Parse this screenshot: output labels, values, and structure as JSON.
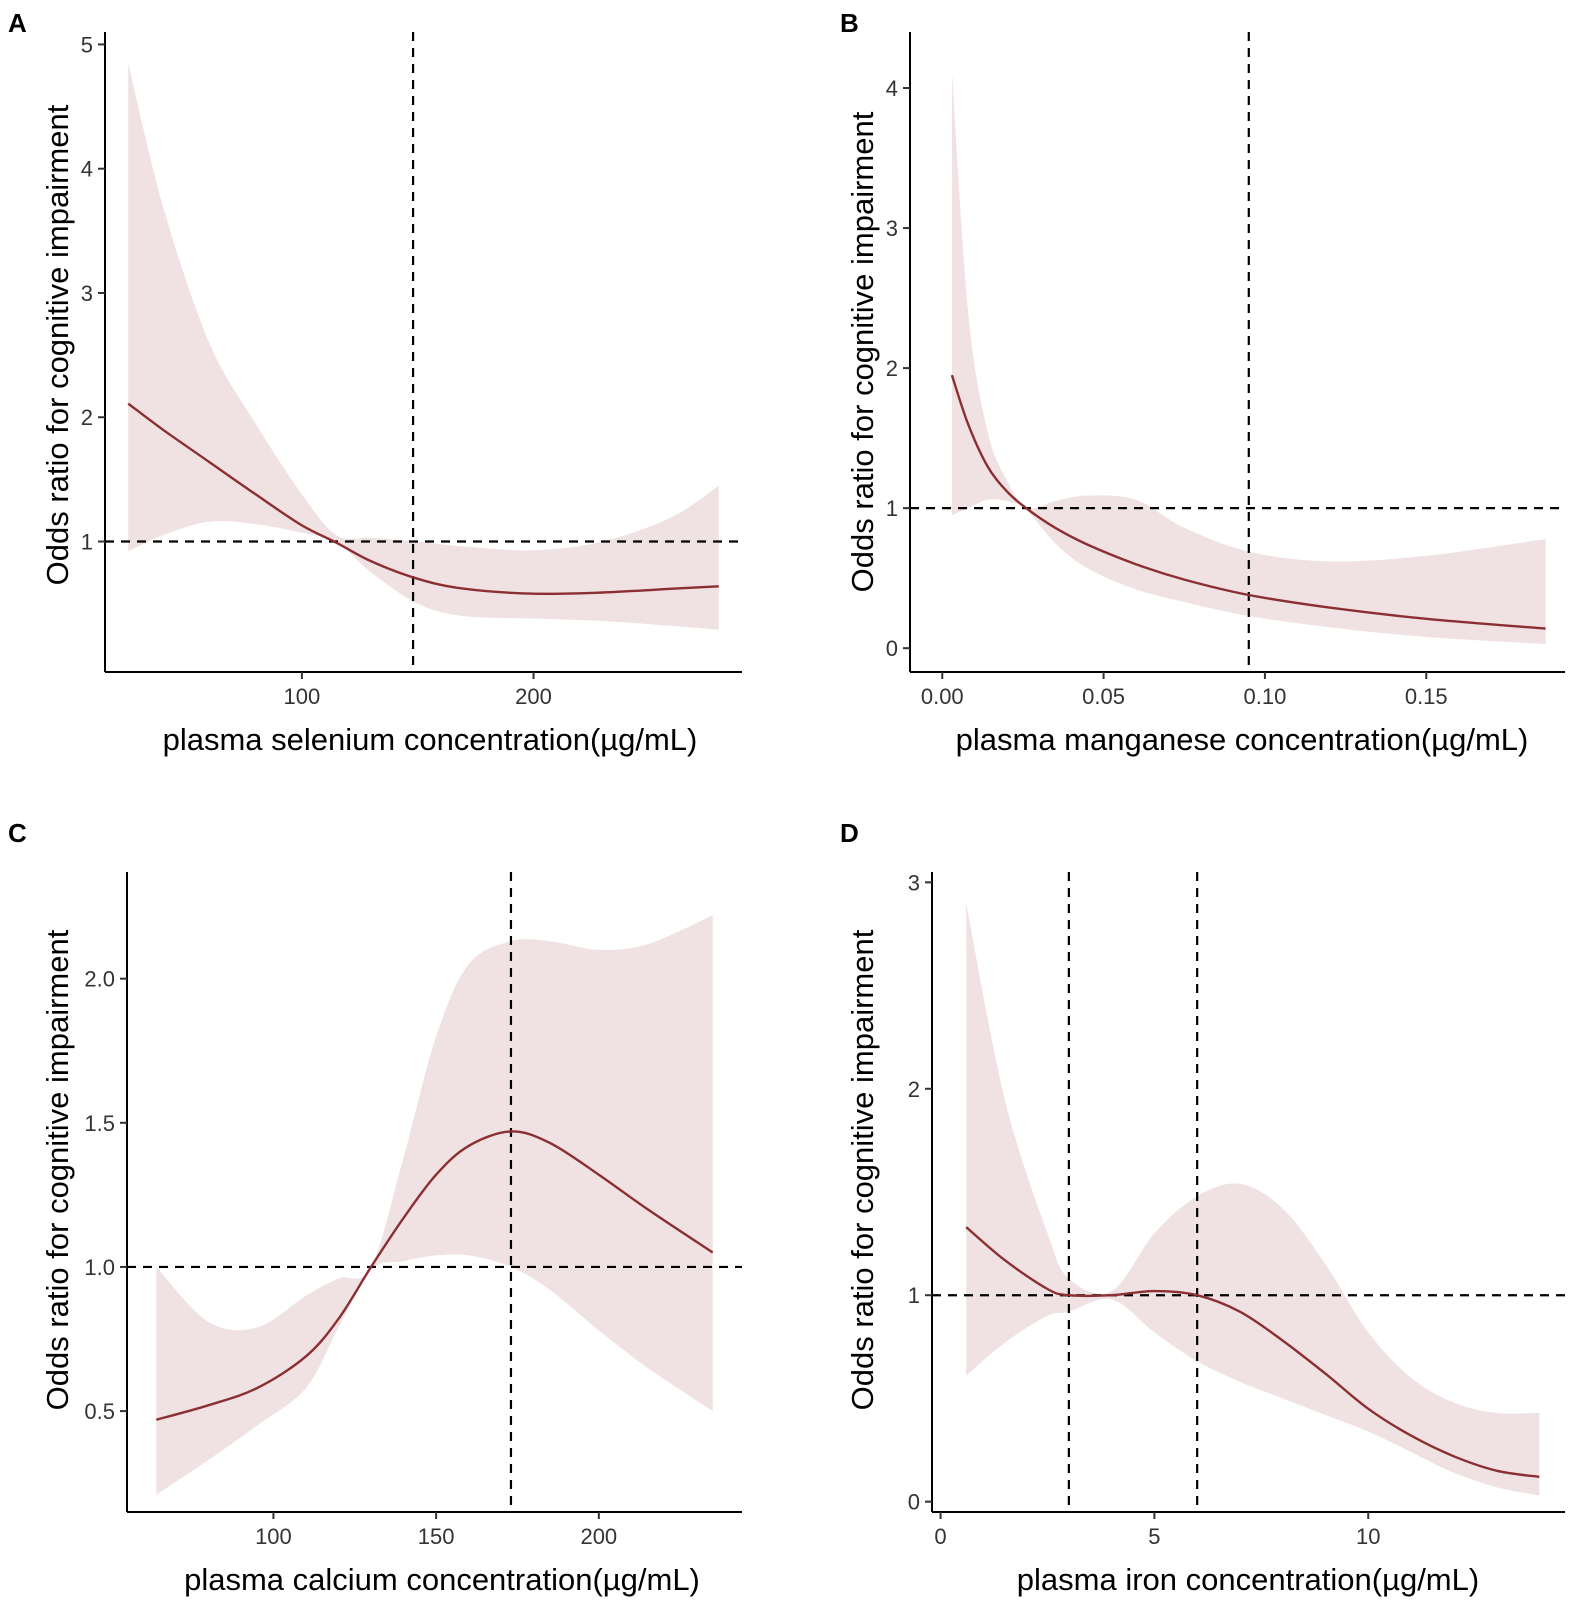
{
  "chart_data": [
    {
      "panel": "A",
      "type": "line",
      "xlabel": "plasma selenium concentration(µg/mL)",
      "ylabel": "Odds ratio for cognitive impairment",
      "xlim": [
        15,
        290
      ],
      "ylim": [
        -0.05,
        5.1
      ],
      "xticks": [
        100,
        200
      ],
      "xtick_labels": [
        "100",
        "200"
      ],
      "yticks": [
        1,
        2,
        3,
        4,
        5
      ],
      "ytick_labels": [
        "1",
        "2",
        "3",
        "4",
        "5"
      ],
      "reference_lines": {
        "h": [
          1
        ],
        "v": [
          148
        ]
      },
      "colors": {
        "line": "#8b2f33",
        "band": "#f0e2e3",
        "ref": "#000000"
      },
      "series": [
        {
          "name": "odds ratio",
          "x": [
            25,
            40,
            60,
            80,
            100,
            115,
            130,
            150,
            170,
            200,
            230,
            260,
            280
          ],
          "y": [
            2.11,
            1.9,
            1.64,
            1.38,
            1.13,
            0.99,
            0.84,
            0.7,
            0.62,
            0.58,
            0.59,
            0.62,
            0.64
          ],
          "lower": [
            0.92,
            1.05,
            1.16,
            1.14,
            1.07,
            0.99,
            0.75,
            0.5,
            0.4,
            0.38,
            0.36,
            0.32,
            0.29
          ],
          "upper": [
            4.85,
            3.7,
            2.6,
            1.95,
            1.38,
            1.05,
            1.03,
            1.0,
            0.96,
            0.93,
            1.0,
            1.2,
            1.45
          ]
        }
      ]
    },
    {
      "panel": "B",
      "type": "line",
      "xlabel": "plasma manganese concentration(µg/mL)",
      "ylabel": "Odds ratio for cognitive impairment",
      "xlim": [
        -0.01,
        0.193
      ],
      "ylim": [
        -0.17,
        4.4
      ],
      "xticks": [
        0.0,
        0.05,
        0.1,
        0.15
      ],
      "xtick_labels": [
        "0.00",
        "0.05",
        "0.10",
        "0.15"
      ],
      "yticks": [
        0,
        1,
        2,
        3,
        4
      ],
      "ytick_labels": [
        "0",
        "1",
        "2",
        "3",
        "4"
      ],
      "reference_lines": {
        "h": [
          1
        ],
        "v": [
          0.095
        ]
      },
      "colors": {
        "line": "#8b2f33",
        "band": "#f0e2e3",
        "ref": "#000000"
      },
      "series": [
        {
          "name": "odds ratio",
          "x": [
            0.003,
            0.008,
            0.014,
            0.02,
            0.026,
            0.035,
            0.045,
            0.06,
            0.075,
            0.095,
            0.12,
            0.15,
            0.187
          ],
          "y": [
            1.95,
            1.6,
            1.3,
            1.12,
            1.0,
            0.86,
            0.74,
            0.6,
            0.49,
            0.38,
            0.29,
            0.21,
            0.14
          ],
          "lower": [
            0.95,
            1.0,
            1.06,
            1.05,
            0.99,
            0.75,
            0.57,
            0.42,
            0.33,
            0.23,
            0.15,
            0.08,
            0.03
          ],
          "upper": [
            4.12,
            2.4,
            1.55,
            1.2,
            1.0,
            1.05,
            1.09,
            1.06,
            0.86,
            0.69,
            0.62,
            0.66,
            0.78
          ]
        }
      ]
    },
    {
      "panel": "C",
      "type": "line",
      "xlabel": "plasma calcium concentration(µg/mL)",
      "ylabel": "Odds ratio for cognitive impairment",
      "xlim": [
        55,
        244
      ],
      "ylim": [
        0.15,
        2.37
      ],
      "xticks": [
        100,
        150,
        200
      ],
      "xtick_labels": [
        "100",
        "150",
        "200"
      ],
      "yticks": [
        0.5,
        1.0,
        1.5,
        2.0
      ],
      "ytick_labels": [
        "0.5",
        "1.0",
        "1.5",
        "2.0"
      ],
      "reference_lines": {
        "h": [
          1.0
        ],
        "v": [
          173
        ]
      },
      "colors": {
        "line": "#8b2f33",
        "band": "#f0e2e3",
        "ref": "#000000"
      },
      "series": [
        {
          "name": "odds ratio",
          "x": [
            64,
            80,
            95,
            110,
            120,
            130,
            140,
            150,
            160,
            173,
            185,
            200,
            215,
            235
          ],
          "y": [
            0.47,
            0.52,
            0.58,
            0.69,
            0.82,
            1.0,
            1.17,
            1.32,
            1.42,
            1.47,
            1.43,
            1.32,
            1.2,
            1.05
          ],
          "lower": [
            0.21,
            0.33,
            0.45,
            0.58,
            0.79,
            0.99,
            1.02,
            1.04,
            1.04,
            1.0,
            0.92,
            0.78,
            0.65,
            0.5
          ],
          "upper": [
            1.0,
            0.81,
            0.79,
            0.9,
            0.96,
            1.0,
            1.38,
            1.8,
            2.05,
            2.13,
            2.13,
            2.1,
            2.12,
            2.22
          ]
        }
      ]
    },
    {
      "panel": "D",
      "type": "line",
      "xlabel": "plasma iron concentration(µg/mL)",
      "ylabel": "Odds ratio for cognitive impairment",
      "xlim": [
        -0.2,
        14.6
      ],
      "ylim": [
        -0.05,
        3.05
      ],
      "xticks": [
        0,
        5,
        10
      ],
      "xtick_labels": [
        "0",
        "5",
        "10"
      ],
      "yticks": [
        0,
        1,
        2,
        3
      ],
      "ytick_labels": [
        "0",
        "1",
        "2",
        "3"
      ],
      "reference_lines": {
        "h": [
          1
        ],
        "v": [
          3.0,
          6.0
        ]
      },
      "colors": {
        "line": "#8b2f33",
        "band": "#f0e2e3",
        "ref": "#000000"
      },
      "series": [
        {
          "name": "odds ratio",
          "x": [
            0.6,
            1.5,
            2.5,
            3.0,
            4.0,
            5.0,
            6.0,
            7.0,
            8.0,
            9.0,
            10.0,
            11.0,
            12.0,
            13.0,
            14.0
          ],
          "y": [
            1.33,
            1.17,
            1.03,
            1.0,
            1.0,
            1.02,
            1.0,
            0.92,
            0.78,
            0.62,
            0.45,
            0.32,
            0.22,
            0.15,
            0.12
          ],
          "lower": [
            0.61,
            0.77,
            0.9,
            0.92,
            0.98,
            0.82,
            0.68,
            0.58,
            0.5,
            0.42,
            0.34,
            0.24,
            0.14,
            0.07,
            0.03
          ],
          "upper": [
            2.9,
            1.95,
            1.3,
            1.08,
            1.02,
            1.3,
            1.48,
            1.54,
            1.42,
            1.15,
            0.82,
            0.6,
            0.48,
            0.43,
            0.43
          ]
        }
      ]
    }
  ]
}
